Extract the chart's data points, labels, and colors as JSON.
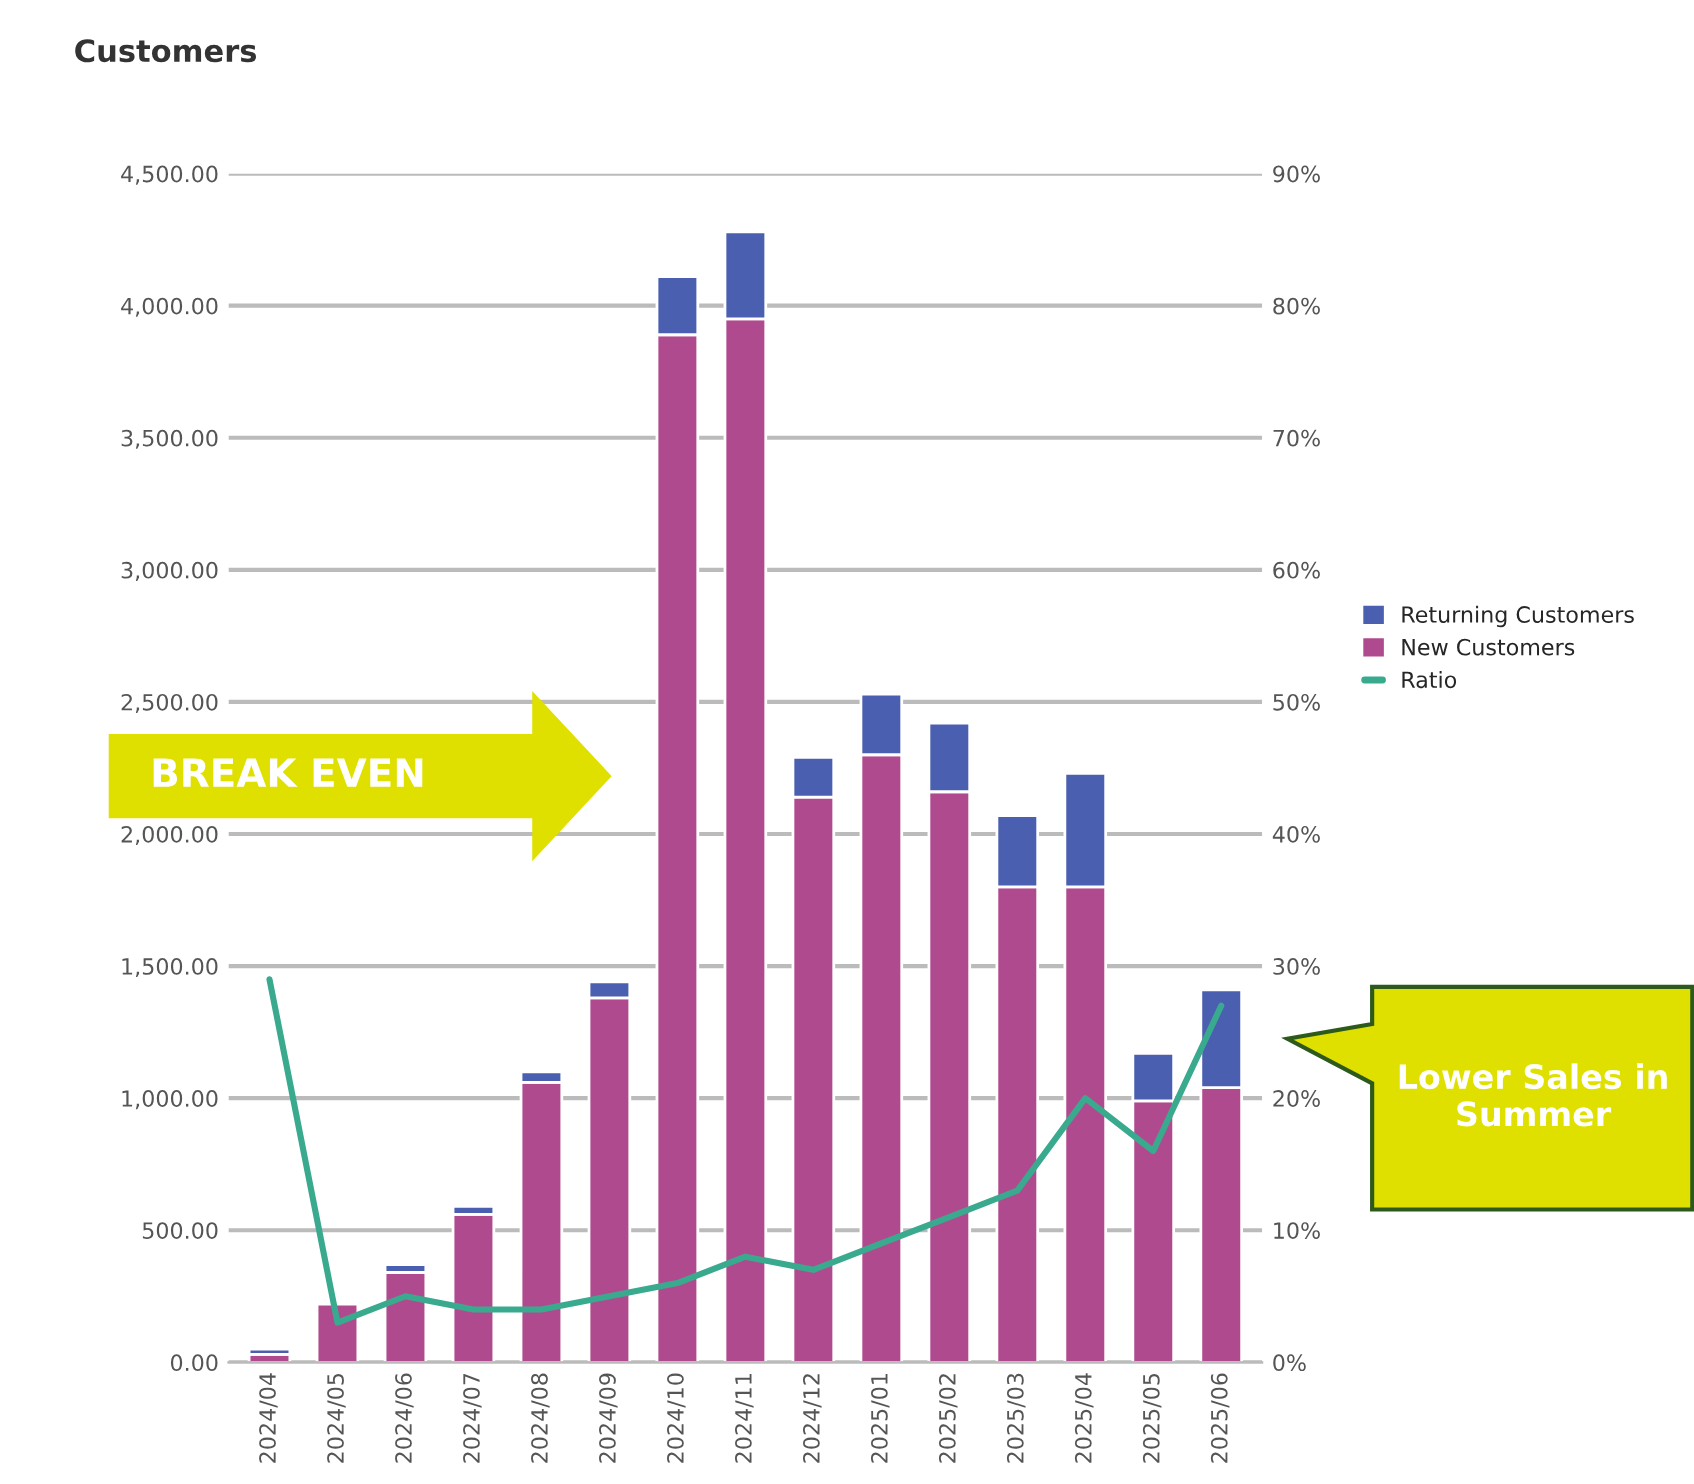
{
  "chart_data": {
    "type": "bar",
    "title": "Customers",
    "stacked": true,
    "categories": [
      "2024/04",
      "2024/05",
      "2024/06",
      "2024/07",
      "2024/08",
      "2024/09",
      "2024/10",
      "2024/11",
      "2024/12",
      "2025/01",
      "2025/02",
      "2025/03",
      "2025/04",
      "2025/05",
      "2025/06"
    ],
    "series": [
      {
        "name": "New Customers",
        "color": "#b04a8e",
        "values": [
          30,
          220,
          340,
          560,
          1060,
          1380,
          3890,
          3950,
          2140,
          2300,
          2160,
          1800,
          1800,
          990,
          1040
        ]
      },
      {
        "name": "Returning Customers",
        "color": "#4a5fb0",
        "values": [
          20,
          null,
          30,
          30,
          40,
          60,
          220,
          330,
          150,
          230,
          260,
          270,
          430,
          180,
          370
        ]
      },
      {
        "name": "Ratio",
        "type": "line",
        "axis": "y2",
        "color": "#3aaa8e",
        "values": [
          29,
          3,
          5,
          4,
          4,
          5,
          6,
          8,
          7,
          9,
          11,
          13,
          20,
          16,
          27
        ]
      }
    ],
    "ylim": [
      0,
      4500
    ],
    "yticks": [
      {
        "value": 0,
        "label": "0.00"
      },
      {
        "value": 500,
        "label": "500.00"
      },
      {
        "value": 1000,
        "label": "1,000.00"
      },
      {
        "value": 1500,
        "label": "1,500.00"
      },
      {
        "value": 2000,
        "label": "2,000.00"
      },
      {
        "value": 2500,
        "label": "2,500.00"
      },
      {
        "value": 3000,
        "label": "3,000.00"
      },
      {
        "value": 3500,
        "label": "3,500.00"
      },
      {
        "value": 4000,
        "label": "4,000.00"
      },
      {
        "value": 4500,
        "label": "4,500.00"
      }
    ],
    "y2lim": [
      0,
      90
    ],
    "y2ticks": [
      {
        "value": 0,
        "label": "0%"
      },
      {
        "value": 10,
        "label": "10%"
      },
      {
        "value": 20,
        "label": "20%"
      },
      {
        "value": 30,
        "label": "30%"
      },
      {
        "value": 40,
        "label": "40%"
      },
      {
        "value": 50,
        "label": "50%"
      },
      {
        "value": 60,
        "label": "60%"
      },
      {
        "value": 70,
        "label": "70%"
      },
      {
        "value": 80,
        "label": "80%"
      },
      {
        "value": 90,
        "label": "90%"
      }
    ],
    "grid": "y",
    "legend": "right",
    "marker": "none",
    "line_style": "solid",
    "annotations": [
      "BREAK EVEN",
      "Lower Sales in Summer"
    ]
  }
}
